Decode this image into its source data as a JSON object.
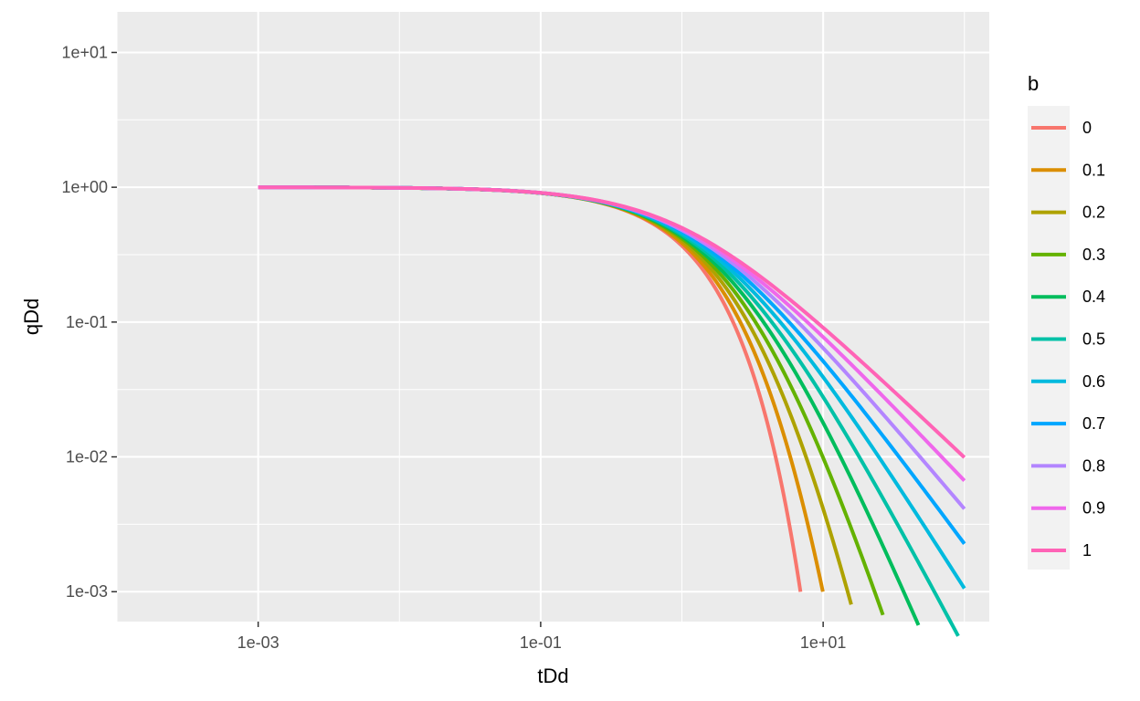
{
  "chart_data": {
    "type": "line",
    "title": "",
    "xlabel": "tDd",
    "ylabel": "qDd",
    "x_scale": "log10",
    "y_scale": "log10",
    "xlim": [
      0.0001,
      150
    ],
    "ylim": [
      0.0006,
      20
    ],
    "x_ticks": [
      {
        "value": 0.001,
        "label": "1e-03"
      },
      {
        "value": 0.1,
        "label": "1e-01"
      },
      {
        "value": 10,
        "label": "1e+01"
      }
    ],
    "y_ticks": [
      {
        "value": 10,
        "label": "1e+01"
      },
      {
        "value": 1,
        "label": "1e+00"
      },
      {
        "value": 0.1,
        "label": "1e-01"
      },
      {
        "value": 0.01,
        "label": "1e-02"
      },
      {
        "value": 0.001,
        "label": "1e-03"
      }
    ],
    "grid": true,
    "background": "#ebebeb",
    "legend": {
      "title": "b",
      "position": "right"
    },
    "curve": "Arps decline qDd = (1 + b*tDd)^(-1/b); exponential exp(-tDd) when b = 0",
    "x_range": [
      0.001,
      100
    ],
    "series": [
      {
        "name": "0",
        "b": 0.0,
        "color": "#F8766D",
        "end_x": 6.91
      },
      {
        "name": "0.1",
        "b": 0.1,
        "color": "#DB8E00",
        "end_x": 9.95
      },
      {
        "name": "0.2",
        "b": 0.2,
        "color": "#AEA200",
        "end_x": 15.8
      },
      {
        "name": "0.3",
        "b": 0.3,
        "color": "#64B200",
        "end_x": 26.5
      },
      {
        "name": "0.4",
        "b": 0.4,
        "color": "#00BD5C",
        "end_x": 47.3
      },
      {
        "name": "0.5",
        "b": 0.5,
        "color": "#00C1A7",
        "end_x": 90.4
      },
      {
        "name": "0.6",
        "b": 0.6,
        "color": "#00BADE",
        "end_x": 100
      },
      {
        "name": "0.7",
        "b": 0.7,
        "color": "#00A6FF",
        "end_x": 100
      },
      {
        "name": "0.8",
        "b": 0.8,
        "color": "#B385FF",
        "end_x": 100
      },
      {
        "name": "0.9",
        "b": 0.9,
        "color": "#EF67EB",
        "end_x": 100
      },
      {
        "name": "1",
        "b": 1.0,
        "color": "#FF63B6",
        "end_x": 100
      }
    ]
  }
}
